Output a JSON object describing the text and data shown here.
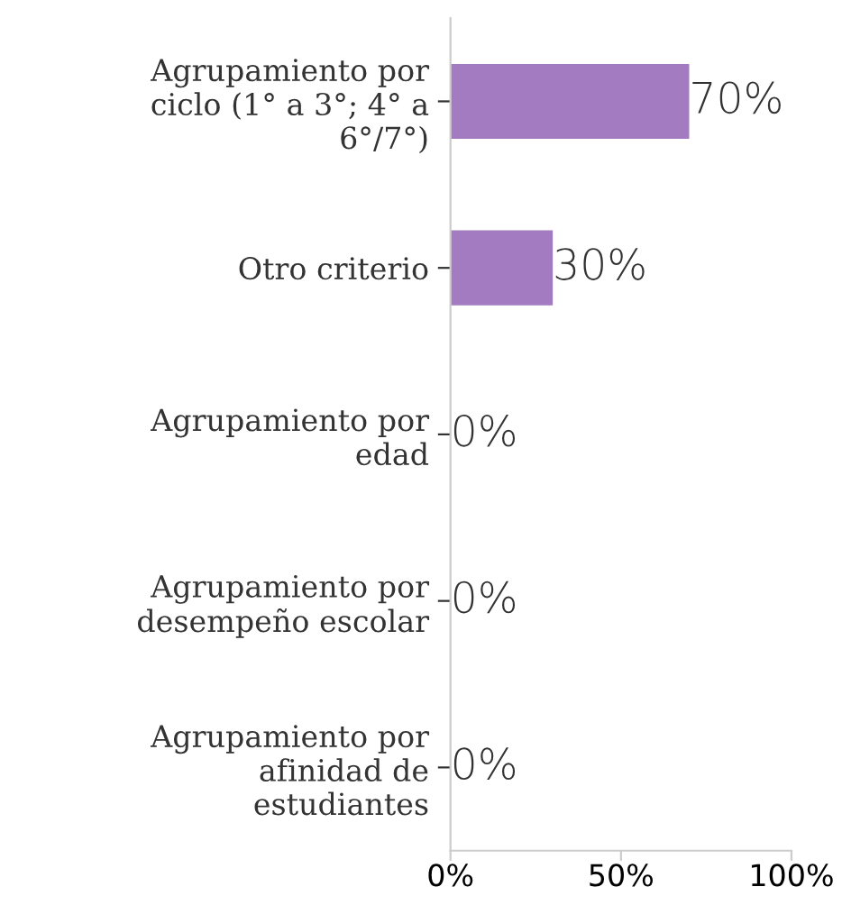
{
  "chart_data": {
    "type": "bar",
    "orientation": "horizontal",
    "categories": [
      "Agrupamiento por\nciclo (1° a 3°; 4° a\n6°/7°)",
      "Otro criterio",
      "Agrupamiento por\nedad",
      "Agrupamiento por\ndesempeño escolar",
      "Agrupamiento por\nafinidad de\nestudiantes"
    ],
    "values": [
      70,
      30,
      0,
      0,
      0
    ],
    "value_labels": [
      "70%",
      "30%",
      "0%",
      "0%",
      "0%"
    ],
    "color": "#a27bc0",
    "xlim": [
      0,
      100
    ],
    "xticks": [
      {
        "value": 0,
        "label": "0%"
      },
      {
        "value": 50,
        "label": "50%"
      },
      {
        "value": 100,
        "label": "100%"
      }
    ],
    "grid": false
  }
}
